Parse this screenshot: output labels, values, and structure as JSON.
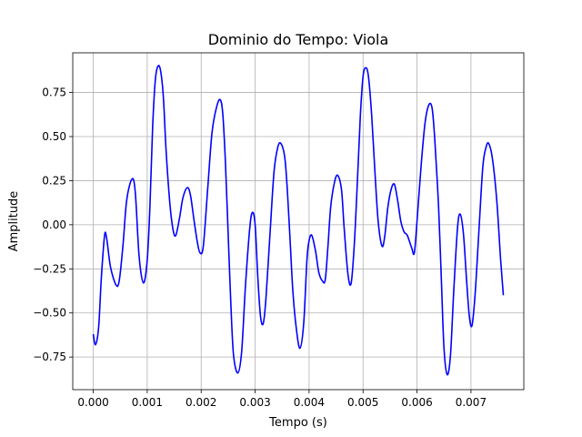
{
  "chart_data": {
    "type": "line",
    "title": "Dominio do Tempo: Viola",
    "xlabel": "Tempo (s)",
    "ylabel": "Amplitude",
    "xlim": [
      -0.00038,
      0.007979
    ],
    "ylim": [
      -0.935,
      0.975
    ],
    "grid": true,
    "line_color": "#0000ff",
    "xticks": [
      {
        "value": 0.0,
        "label": "0.000"
      },
      {
        "value": 0.001,
        "label": "0.001"
      },
      {
        "value": 0.002,
        "label": "0.002"
      },
      {
        "value": 0.003,
        "label": "0.003"
      },
      {
        "value": 0.004,
        "label": "0.004"
      },
      {
        "value": 0.005,
        "label": "0.005"
      },
      {
        "value": 0.006,
        "label": "0.006"
      },
      {
        "value": 0.007,
        "label": "0.007"
      }
    ],
    "yticks": [
      {
        "value": -0.75,
        "label": "−0.75"
      },
      {
        "value": -0.5,
        "label": "−0.50"
      },
      {
        "value": -0.25,
        "label": "−0.25"
      },
      {
        "value": 0.0,
        "label": "0.00"
      },
      {
        "value": 0.25,
        "label": "0.25"
      },
      {
        "value": 0.5,
        "label": "0.50"
      },
      {
        "value": 0.75,
        "label": "0.75"
      }
    ],
    "series": [
      {
        "points": [
          [
            0.0,
            -0.62
          ],
          [
            4.2e-05,
            -0.68
          ],
          [
            0.0001,
            -0.58
          ],
          [
            0.00015,
            -0.3
          ],
          [
            0.00021,
            -0.06
          ],
          [
            0.00025,
            -0.08
          ],
          [
            0.00032,
            -0.24
          ],
          [
            0.00042,
            -0.34
          ],
          [
            0.00048,
            -0.32
          ],
          [
            0.00055,
            -0.12
          ],
          [
            0.00062,
            0.14
          ],
          [
            0.00072,
            0.26
          ],
          [
            0.00078,
            0.18
          ],
          [
            0.00085,
            -0.18
          ],
          [
            0.00093,
            -0.33
          ],
          [
            0.001,
            -0.2
          ],
          [
            0.00105,
            0.1
          ],
          [
            0.0011,
            0.55
          ],
          [
            0.00115,
            0.82
          ],
          [
            0.0012,
            0.9
          ],
          [
            0.00125,
            0.87
          ],
          [
            0.0013,
            0.72
          ],
          [
            0.00135,
            0.42
          ],
          [
            0.00142,
            0.12
          ],
          [
            0.00148,
            -0.03
          ],
          [
            0.00153,
            -0.06
          ],
          [
            0.0016,
            0.04
          ],
          [
            0.00166,
            0.15
          ],
          [
            0.00174,
            0.21
          ],
          [
            0.0018,
            0.17
          ],
          [
            0.00187,
            0.02
          ],
          [
            0.00193,
            -0.1
          ],
          [
            0.00198,
            -0.16
          ],
          [
            0.00204,
            -0.12
          ],
          [
            0.00212,
            0.2
          ],
          [
            0.0022,
            0.52
          ],
          [
            0.00228,
            0.66
          ],
          [
            0.00235,
            0.71
          ],
          [
            0.0024,
            0.63
          ],
          [
            0.00245,
            0.35
          ],
          [
            0.0025,
            -0.05
          ],
          [
            0.00255,
            -0.45
          ],
          [
            0.0026,
            -0.74
          ],
          [
            0.00268,
            -0.84
          ],
          [
            0.00275,
            -0.72
          ],
          [
            0.00282,
            -0.35
          ],
          [
            0.0029,
            -0.02
          ],
          [
            0.00295,
            0.07
          ],
          [
            0.003,
            0.0
          ],
          [
            0.00305,
            -0.3
          ],
          [
            0.0031,
            -0.52
          ],
          [
            0.00315,
            -0.56
          ],
          [
            0.0032,
            -0.42
          ],
          [
            0.00328,
            -0.03
          ],
          [
            0.00335,
            0.3
          ],
          [
            0.00342,
            0.44
          ],
          [
            0.00348,
            0.46
          ],
          [
            0.00355,
            0.38
          ],
          [
            0.0036,
            0.18
          ],
          [
            0.00365,
            -0.1
          ],
          [
            0.0037,
            -0.38
          ],
          [
            0.00376,
            -0.58
          ],
          [
            0.00383,
            -0.7
          ],
          [
            0.0039,
            -0.56
          ],
          [
            0.00396,
            -0.2
          ],
          [
            0.004,
            -0.09
          ],
          [
            0.00405,
            -0.06
          ],
          [
            0.00412,
            -0.15
          ],
          [
            0.00418,
            -0.27
          ],
          [
            0.00425,
            -0.32
          ],
          [
            0.0043,
            -0.31
          ],
          [
            0.00435,
            -0.12
          ],
          [
            0.0044,
            0.1
          ],
          [
            0.00447,
            0.24
          ],
          [
            0.00453,
            0.28
          ],
          [
            0.0046,
            0.2
          ],
          [
            0.00465,
            -0.02
          ],
          [
            0.00472,
            -0.28
          ],
          [
            0.00478,
            -0.33
          ],
          [
            0.00484,
            -0.1
          ],
          [
            0.0049,
            0.28
          ],
          [
            0.00495,
            0.62
          ],
          [
            0.005,
            0.84
          ],
          [
            0.00505,
            0.89
          ],
          [
            0.0051,
            0.84
          ],
          [
            0.00516,
            0.62
          ],
          [
            0.00522,
            0.3
          ],
          [
            0.00528,
            0.02
          ],
          [
            0.00535,
            -0.12
          ],
          [
            0.0054,
            -0.07
          ],
          [
            0.00546,
            0.1
          ],
          [
            0.00552,
            0.2
          ],
          [
            0.00558,
            0.23
          ],
          [
            0.00564,
            0.14
          ],
          [
            0.0057,
            0.02
          ],
          [
            0.00576,
            -0.04
          ],
          [
            0.00582,
            -0.06
          ],
          [
            0.0059,
            -0.13
          ],
          [
            0.00595,
            -0.16
          ],
          [
            0.006,
            0.02
          ],
          [
            0.00608,
            0.35
          ],
          [
            0.00615,
            0.58
          ],
          [
            0.00622,
            0.68
          ],
          [
            0.00628,
            0.66
          ],
          [
            0.00633,
            0.48
          ],
          [
            0.0064,
            0.1
          ],
          [
            0.00645,
            -0.3
          ],
          [
            0.0065,
            -0.7
          ],
          [
            0.00656,
            -0.85
          ],
          [
            0.00662,
            -0.74
          ],
          [
            0.00668,
            -0.38
          ],
          [
            0.00675,
            -0.02
          ],
          [
            0.0068,
            0.06
          ],
          [
            0.00686,
            -0.05
          ],
          [
            0.00692,
            -0.32
          ],
          [
            0.00697,
            -0.52
          ],
          [
            0.00702,
            -0.57
          ],
          [
            0.00708,
            -0.38
          ],
          [
            0.00715,
            -0.02
          ],
          [
            0.00722,
            0.33
          ],
          [
            0.00728,
            0.44
          ],
          [
            0.00733,
            0.46
          ],
          [
            0.0074,
            0.37
          ],
          [
            0.00748,
            0.13
          ],
          [
            0.00755,
            -0.2
          ],
          [
            0.0076,
            -0.4
          ]
        ]
      }
    ]
  }
}
